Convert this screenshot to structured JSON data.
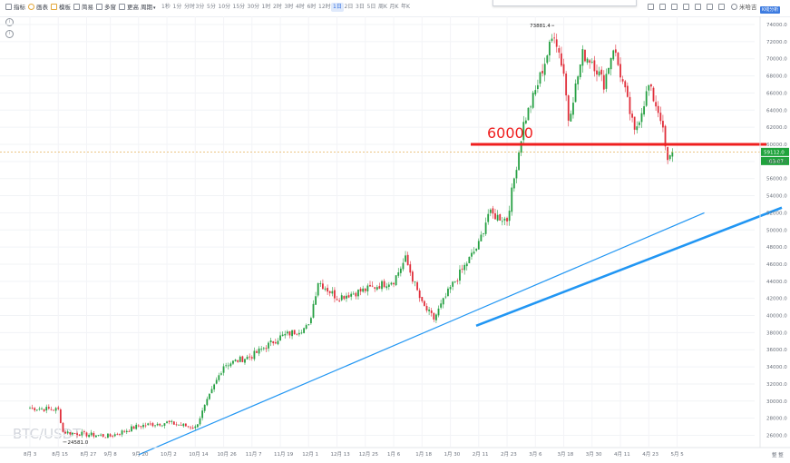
{
  "toolbar": {
    "left_items": [
      {
        "label": "指标",
        "icon": "indicator-icon"
      },
      {
        "label": "画表",
        "icon": "draw-icon"
      },
      {
        "label": "模板",
        "icon": "template-icon"
      },
      {
        "label": "简易",
        "icon": "simple-icon"
      },
      {
        "label": "多窗",
        "icon": "multi-window-icon"
      },
      {
        "label": "更高",
        "icon": "more-icon"
      },
      {
        "label": "周期",
        "icon": "chevron-down-icon"
      }
    ],
    "intervals": [
      "1秒",
      "1分",
      "分时",
      "3分",
      "5分",
      "10分",
      "15分",
      "30分",
      "1时",
      "2时",
      "3时",
      "4时",
      "6时",
      "12时",
      "1日",
      "2日",
      "3日",
      "5日",
      "周K",
      "月K",
      "年K"
    ],
    "active_interval": "1日",
    "right_label": "米哈吉",
    "corner_badge": "K线分析"
  },
  "watermark": "BTC/USDT",
  "accent_colors": {
    "up": "#26a043",
    "down": "#e02f3b",
    "trend": "#2196f3",
    "level": "#ef1f1f",
    "price_tag": "#1fa33c"
  },
  "chart_data": {
    "type": "candlestick",
    "pair": "BTC/USDT",
    "interval": "1日",
    "x_tick_labels": [
      "8月 3",
      "8月 15",
      "8月 27",
      "9月 8",
      "9月 20",
      "10月 2",
      "10月 14",
      "10月 26",
      "11月 7",
      "11月 19",
      "12月 1",
      "12月 13",
      "12月 25",
      "1月 6",
      "1月 18",
      "1月 30",
      "2月 11",
      "2月 23",
      "3月 6",
      "3月 18",
      "3月 30",
      "4月 11",
      "4月 23",
      "5月 5"
    ],
    "y_tick_labels": [
      "26000.0",
      "28000.0",
      "30000.0",
      "32000.0",
      "34000.0",
      "36000.0",
      "38000.0",
      "40000.0",
      "42000.0",
      "44000.0",
      "46000.0",
      "48000.0",
      "50000.0",
      "52000.0",
      "54000.0",
      "56000.0",
      "58000.0",
      "60000.0",
      "62000.0",
      "64000.0",
      "66000.0",
      "68000.0",
      "70000.0",
      "72000.0",
      "74000.0"
    ],
    "ylim": [
      25000,
      75000
    ],
    "close_path": [
      {
        "date": "8月 3",
        "close": 29200
      },
      {
        "date": "8月 15",
        "close": 29000
      },
      {
        "date": "8月 17",
        "close": 26400
      },
      {
        "date": "8月 27",
        "close": 26100
      },
      {
        "date": "9月 8",
        "close": 25900
      },
      {
        "date": "9月 20",
        "close": 27100
      },
      {
        "date": "10月 2",
        "close": 27500
      },
      {
        "date": "10月 14",
        "close": 26900
      },
      {
        "date": "10月 26",
        "close": 34200
      },
      {
        "date": "11月 7",
        "close": 35300
      },
      {
        "date": "11月 19",
        "close": 37500
      },
      {
        "date": "12月 1",
        "close": 38700
      },
      {
        "date": "12月 5",
        "close": 44000
      },
      {
        "date": "12月 13",
        "close": 42100
      },
      {
        "date": "12月 25",
        "close": 43000
      },
      {
        "date": "1月 6",
        "close": 44100
      },
      {
        "date": "1月 11",
        "close": 46600
      },
      {
        "date": "1月 18",
        "close": 41300
      },
      {
        "date": "1月 23",
        "close": 39600
      },
      {
        "date": "1月 30",
        "close": 43200
      },
      {
        "date": "2月 11",
        "close": 48300
      },
      {
        "date": "2月 15",
        "close": 51900
      },
      {
        "date": "2月 23",
        "close": 51200
      },
      {
        "date": "3月 1",
        "close": 62400
      },
      {
        "date": "3月 6",
        "close": 66200
      },
      {
        "date": "3月 14",
        "close": 73100
      },
      {
        "date": "3月 18",
        "close": 68400
      },
      {
        "date": "3月 20",
        "close": 63000
      },
      {
        "date": "3月 26",
        "close": 70500
      },
      {
        "date": "3月 30",
        "close": 69800
      },
      {
        "date": "4月 4",
        "close": 67100
      },
      {
        "date": "4月 8",
        "close": 71400
      },
      {
        "date": "4月 13",
        "close": 66100
      },
      {
        "date": "4月 17",
        "close": 61300
      },
      {
        "date": "4月 23",
        "close": 66800
      },
      {
        "date": "4月 28",
        "close": 63200
      },
      {
        "date": "5月 1",
        "close": 57800
      },
      {
        "date": "5月 3",
        "close": 59112
      }
    ],
    "annotations": {
      "high_label": "73881.4",
      "low_label": "24581.0",
      "level_value": 60000,
      "level_label": "60000",
      "last_price": "59112.0",
      "countdown": "03:07"
    },
    "trendline": {
      "from": {
        "date": "9月 20",
        "price": 25000
      },
      "to": {
        "date": "5月 5",
        "price": 52000
      }
    },
    "grid": true
  }
}
